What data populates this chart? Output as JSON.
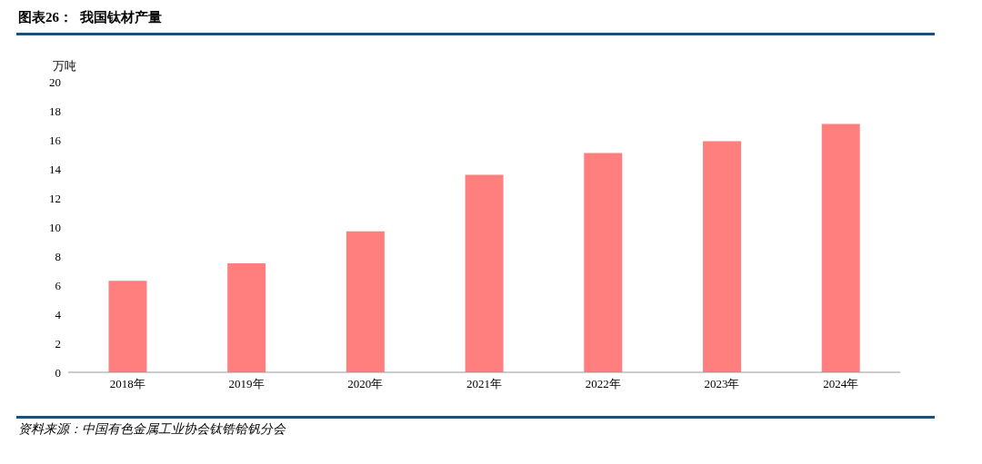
{
  "chart_data": {
    "type": "bar",
    "title": "图表26：  我国钛材产量",
    "ylabel": "万吨",
    "categories": [
      "2018年",
      "2019年",
      "2020年",
      "2021年",
      "2022年",
      "2023年",
      "2024年"
    ],
    "values": [
      6.3,
      7.5,
      9.7,
      13.6,
      15.1,
      15.9,
      17.1
    ],
    "color": "#ff7f7f",
    "ylim": [
      0,
      20
    ],
    "yticks": [
      0,
      2,
      4,
      6,
      8,
      10,
      12,
      14,
      16,
      18,
      20
    ],
    "grid": false,
    "legend": false,
    "annotations": [
      "资料来源：中国有色金属工业协会钛锆铪钒分会"
    ]
  }
}
